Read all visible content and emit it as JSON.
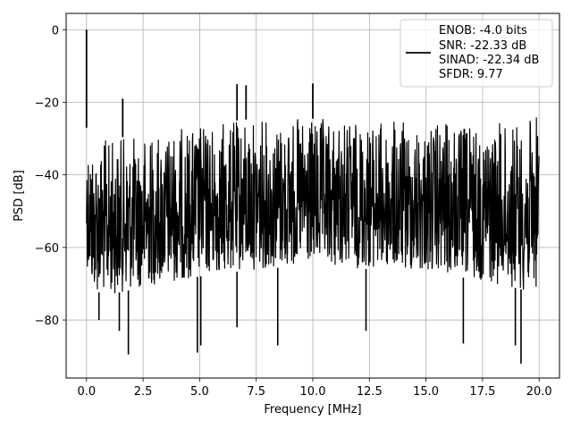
{
  "chart_data": {
    "type": "line",
    "title": "",
    "xlabel": "Frequency [MHz]",
    "ylabel": "PSD [dB]",
    "xlim": [
      -0.9,
      20.9
    ],
    "ylim": [
      -96,
      4.5
    ],
    "xticks": [
      0.0,
      2.5,
      5.0,
      7.5,
      10.0,
      12.5,
      15.0,
      17.5,
      20.0
    ],
    "xtick_labels": [
      "0.0",
      "2.5",
      "5.0",
      "7.5",
      "10.0",
      "12.5",
      "15.0",
      "17.5",
      "20.0"
    ],
    "yticks": [
      0,
      -20,
      -40,
      -60,
      -80
    ],
    "ytick_labels": [
      "0",
      "−20",
      "−40",
      "−60",
      "−80"
    ],
    "grid": true,
    "legend_position": "top-right",
    "series": [
      {
        "color": "#000000",
        "envelope": {
          "x": [
            0.0,
            0.25,
            1.0,
            2.5,
            5.0,
            7.5,
            10.0,
            12.5,
            15.0,
            17.5,
            19.5,
            20.0
          ],
          "upper": [
            -27,
            -30,
            -30,
            -29,
            -26,
            -24.5,
            -24.5,
            -25,
            -25.5,
            -26,
            -25,
            -23
          ],
          "lower": [
            -64,
            -72,
            -73,
            -71,
            -68,
            -66,
            -65,
            -66,
            -67,
            -69,
            -72,
            -71
          ]
        },
        "peaks": [
          {
            "x": 0.0,
            "y": 0.0
          },
          {
            "x": 1.6,
            "y": -19.0
          },
          {
            "x": 6.65,
            "y": -15.0
          },
          {
            "x": 7.05,
            "y": -15.3
          },
          {
            "x": 10.0,
            "y": -14.8
          }
        ],
        "dips": [
          {
            "x": 0.55,
            "y": -80.0
          },
          {
            "x": 1.45,
            "y": -83.0
          },
          {
            "x": 1.85,
            "y": -89.5
          },
          {
            "x": 4.9,
            "y": -89.0
          },
          {
            "x": 5.05,
            "y": -87.0
          },
          {
            "x": 6.65,
            "y": -82.0
          },
          {
            "x": 8.45,
            "y": -87.0
          },
          {
            "x": 12.35,
            "y": -83.0
          },
          {
            "x": 16.65,
            "y": -86.5
          },
          {
            "x": 18.95,
            "y": -87.0
          },
          {
            "x": 19.2,
            "y": -92.0
          }
        ]
      }
    ]
  },
  "legend": {
    "lines": [
      "ENOB: -4.0 bits",
      "SNR: -22.33 dB",
      "SINAD: -22.34 dB",
      "SFDR: 9.77"
    ]
  }
}
